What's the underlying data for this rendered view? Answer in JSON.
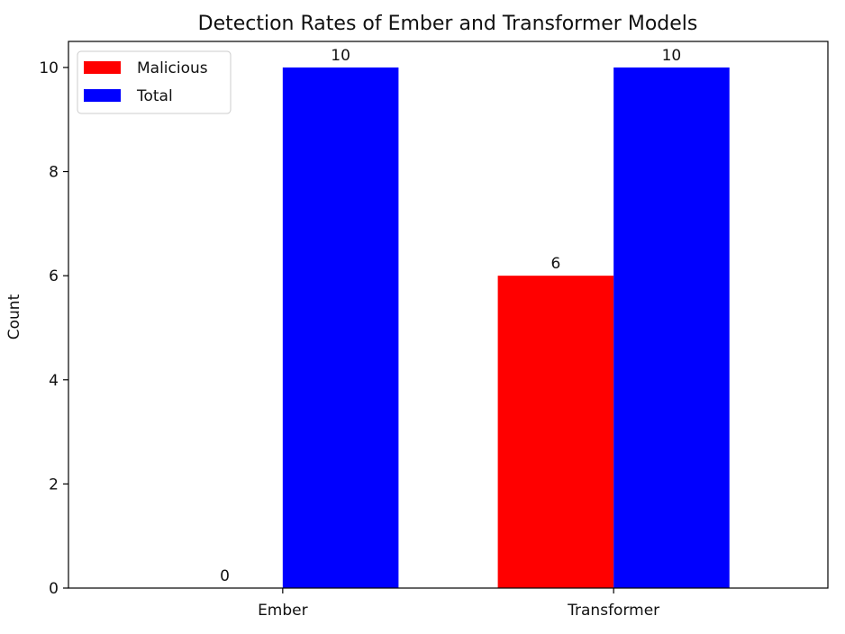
{
  "chart_data": {
    "type": "bar",
    "title": "Detection Rates of Ember and Transformer Models",
    "xlabel": "",
    "ylabel": "Count",
    "categories": [
      "Ember",
      "Transformer"
    ],
    "series": [
      {
        "name": "Malicious",
        "values": [
          0,
          6
        ],
        "color": "#ff0000"
      },
      {
        "name": "Total",
        "values": [
          10,
          10
        ],
        "color": "#0000ff"
      }
    ],
    "ylim": [
      0,
      10.5
    ],
    "yticks": [
      0,
      2,
      4,
      6,
      8,
      10
    ],
    "grid": false,
    "legend_position": "top-left",
    "data_labels": true
  }
}
